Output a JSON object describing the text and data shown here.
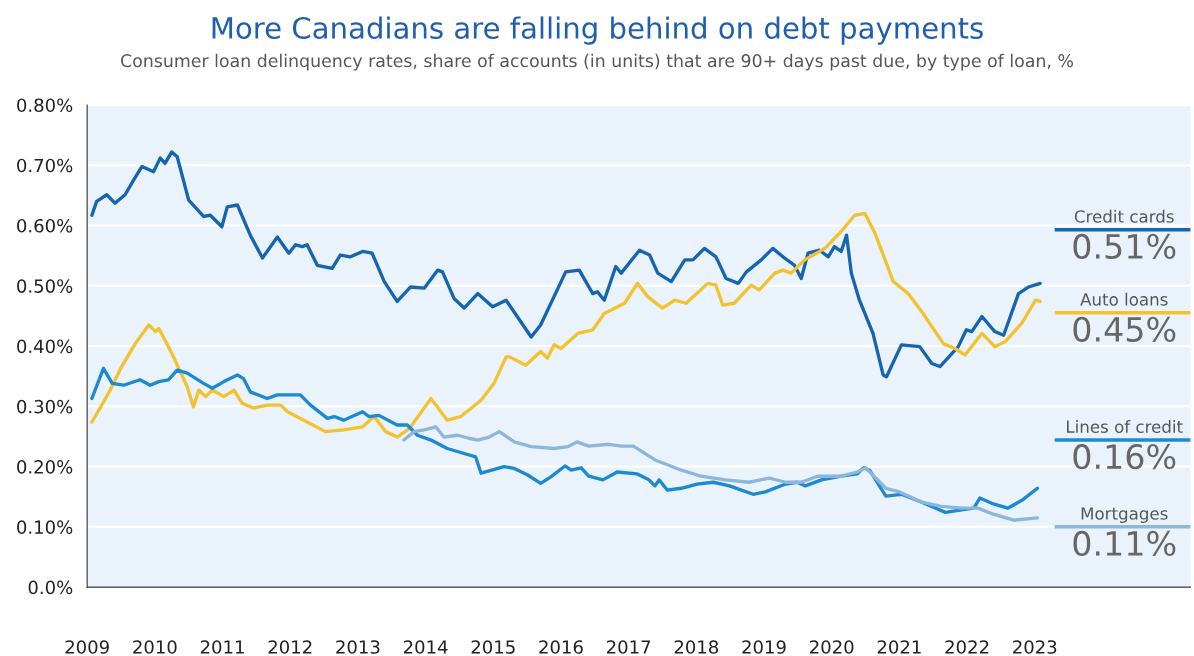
{
  "chart_data": {
    "type": "line",
    "title": "More Canadians are falling behind on debt payments",
    "subtitle": "Consumer loan delinquency rates, share of accounts (in units) that are 90+ days past due, by type of loan, %",
    "series": [
      {
        "name": "Credit cards",
        "color": "#1565b0",
        "x": [
          2009.07,
          2009.14,
          2009.29,
          2009.41,
          2009.56,
          2009.69,
          2009.81,
          2009.98,
          2010.08,
          2010.15,
          2010.25,
          2010.33,
          2010.5,
          2010.72,
          2010.82,
          2010.99,
          2011.07,
          2011.22,
          2011.41,
          2011.59,
          2011.81,
          2011.98,
          2012.08,
          2012.18,
          2012.25,
          2012.4,
          2012.62,
          2012.74,
          2012.89,
          2013.07,
          2013.21,
          2013.39,
          2013.58,
          2013.78,
          2013.98,
          2014.18,
          2014.25,
          2014.42,
          2014.57,
          2014.77,
          2014.99,
          2015.19,
          2015.56,
          2015.7,
          2016.07,
          2016.27,
          2016.47,
          2016.54,
          2016.64,
          2016.81,
          2016.89,
          2017.16,
          2017.31,
          2017.43,
          2017.63,
          2017.83,
          2017.95,
          2018.12,
          2018.29,
          2018.44,
          2018.62,
          2018.74,
          2018.96,
          2019.13,
          2019.28,
          2019.45,
          2019.55,
          2019.65,
          2019.82,
          2019.95,
          2020.04,
          2020.14,
          2020.22,
          2020.29,
          2020.41,
          2020.49,
          2020.61,
          2020.76,
          2020.81,
          2021.03,
          2021.3,
          2021.48,
          2021.6,
          2021.87,
          2021.99,
          2022.07,
          2022.22,
          2022.41,
          2022.54,
          2022.76,
          2022.91,
          2023.08
        ],
        "values": [
          0.617,
          0.64,
          0.651,
          0.637,
          0.651,
          0.676,
          0.698,
          0.689,
          0.712,
          0.703,
          0.722,
          0.714,
          0.642,
          0.615,
          0.617,
          0.598,
          0.631,
          0.634,
          0.584,
          0.546,
          0.581,
          0.554,
          0.568,
          0.565,
          0.568,
          0.534,
          0.529,
          0.551,
          0.548,
          0.557,
          0.554,
          0.507,
          0.474,
          0.498,
          0.496,
          0.526,
          0.523,
          0.479,
          0.463,
          0.487,
          0.465,
          0.476,
          0.415,
          0.435,
          0.523,
          0.526,
          0.487,
          0.49,
          0.476,
          0.532,
          0.521,
          0.559,
          0.551,
          0.521,
          0.507,
          0.543,
          0.543,
          0.562,
          0.548,
          0.512,
          0.504,
          0.523,
          0.543,
          0.562,
          0.548,
          0.534,
          0.512,
          0.554,
          0.559,
          0.548,
          0.565,
          0.557,
          0.584,
          0.521,
          0.476,
          0.454,
          0.421,
          0.352,
          0.349,
          0.402,
          0.399,
          0.371,
          0.366,
          0.399,
          0.427,
          0.424,
          0.449,
          0.424,
          0.418,
          0.487,
          0.498,
          0.504
        ]
      },
      {
        "name": "Auto loans",
        "color": "#f2c230",
        "x": [
          2009.07,
          2009.19,
          2009.34,
          2009.51,
          2009.71,
          2009.91,
          2010.01,
          2010.06,
          2010.25,
          2010.48,
          2010.57,
          2010.65,
          2010.75,
          2010.85,
          2011.02,
          2011.17,
          2011.29,
          2011.46,
          2011.66,
          2011.86,
          2011.96,
          2012.25,
          2012.52,
          2012.79,
          2013.07,
          2013.24,
          2013.41,
          2013.58,
          2013.76,
          2014.08,
          2014.32,
          2014.52,
          2014.82,
          2015.01,
          2015.19,
          2015.24,
          2015.48,
          2015.7,
          2015.8,
          2015.9,
          2016.0,
          2016.25,
          2016.47,
          2016.64,
          2016.94,
          2017.13,
          2017.28,
          2017.5,
          2017.68,
          2017.85,
          2018.17,
          2018.29,
          2018.39,
          2018.56,
          2018.81,
          2018.93,
          2019.16,
          2019.28,
          2019.4,
          2019.6,
          2019.9,
          2020.14,
          2020.34,
          2020.49,
          2020.64,
          2020.91,
          2021.13,
          2021.35,
          2021.65,
          2021.82,
          2021.97,
          2022.22,
          2022.41,
          2022.56,
          2022.81,
          2023.01,
          2023.08
        ],
        "values": [
          0.274,
          0.297,
          0.327,
          0.366,
          0.404,
          0.435,
          0.424,
          0.429,
          0.388,
          0.332,
          0.299,
          0.327,
          0.316,
          0.327,
          0.316,
          0.327,
          0.305,
          0.297,
          0.302,
          0.302,
          0.291,
          0.274,
          0.258,
          0.261,
          0.266,
          0.283,
          0.258,
          0.249,
          0.263,
          0.313,
          0.277,
          0.283,
          0.31,
          0.338,
          0.382,
          0.382,
          0.368,
          0.391,
          0.38,
          0.402,
          0.396,
          0.421,
          0.427,
          0.454,
          0.471,
          0.504,
          0.482,
          0.463,
          0.476,
          0.471,
          0.504,
          0.501,
          0.468,
          0.471,
          0.501,
          0.493,
          0.521,
          0.526,
          0.521,
          0.543,
          0.562,
          0.59,
          0.617,
          0.62,
          0.587,
          0.507,
          0.487,
          0.454,
          0.404,
          0.396,
          0.385,
          0.421,
          0.399,
          0.407,
          0.438,
          0.476,
          0.474
        ]
      },
      {
        "name": "Lines of credit",
        "color": "#1b8ad0",
        "x": [
          2009.07,
          2009.24,
          2009.37,
          2009.54,
          2009.78,
          2009.93,
          2010.06,
          2010.2,
          2010.33,
          2010.48,
          2010.72,
          2010.85,
          2011.02,
          2011.22,
          2011.31,
          2011.41,
          2011.66,
          2011.81,
          2012.15,
          2012.3,
          2012.55,
          2012.65,
          2012.79,
          2013.07,
          2013.16,
          2013.31,
          2013.58,
          2013.73,
          2013.88,
          2014.08,
          2014.32,
          2014.47,
          2014.74,
          2014.82,
          2015.16,
          2015.31,
          2015.51,
          2015.7,
          2015.85,
          2016.06,
          2016.15,
          2016.3,
          2016.41,
          2016.62,
          2016.83,
          2017.12,
          2017.3,
          2017.39,
          2017.45,
          2017.57,
          2017.78,
          2018.01,
          2018.25,
          2018.49,
          2018.84,
          2019.02,
          2019.32,
          2019.49,
          2019.61,
          2019.85,
          2020.14,
          2020.38,
          2020.47,
          2020.56,
          2020.8,
          2021.03,
          2021.33,
          2021.68,
          2021.92,
          2022.1,
          2022.19,
          2022.39,
          2022.6,
          2022.81,
          2023.04
        ],
        "values": [
          0.313,
          0.363,
          0.338,
          0.335,
          0.344,
          0.335,
          0.341,
          0.344,
          0.36,
          0.355,
          0.338,
          0.33,
          0.341,
          0.352,
          0.346,
          0.324,
          0.313,
          0.319,
          0.319,
          0.302,
          0.28,
          0.283,
          0.277,
          0.291,
          0.283,
          0.285,
          0.269,
          0.269,
          0.252,
          0.244,
          0.23,
          0.225,
          0.216,
          0.189,
          0.2,
          0.197,
          0.186,
          0.172,
          0.183,
          0.201,
          0.194,
          0.198,
          0.184,
          0.178,
          0.191,
          0.188,
          0.178,
          0.168,
          0.178,
          0.161,
          0.164,
          0.171,
          0.174,
          0.168,
          0.154,
          0.158,
          0.171,
          0.174,
          0.168,
          0.178,
          0.184,
          0.188,
          0.198,
          0.194,
          0.151,
          0.154,
          0.141,
          0.124,
          0.128,
          0.131,
          0.148,
          0.138,
          0.131,
          0.144,
          0.164
        ]
      },
      {
        "name": "Mortgages",
        "color": "#8bb7dc",
        "x": [
          2013.68,
          2013.83,
          2013.98,
          2014.15,
          2014.27,
          2014.47,
          2014.64,
          2014.77,
          2014.94,
          2015.09,
          2015.31,
          2015.56,
          2015.9,
          2016.1,
          2016.24,
          2016.41,
          2016.71,
          2016.89,
          2017.07,
          2017.39,
          2017.78,
          2018.07,
          2018.43,
          2018.78,
          2019.08,
          2019.32,
          2019.55,
          2019.79,
          2020.14,
          2020.38,
          2020.5,
          2020.8,
          2021.0,
          2021.33,
          2021.62,
          2021.92,
          2022.16,
          2022.39,
          2022.69,
          2023.04
        ],
        "values": [
          0.244,
          0.258,
          0.261,
          0.266,
          0.249,
          0.252,
          0.247,
          0.244,
          0.249,
          0.258,
          0.241,
          0.233,
          0.23,
          0.233,
          0.241,
          0.234,
          0.237,
          0.234,
          0.234,
          0.211,
          0.194,
          0.184,
          0.178,
          0.174,
          0.181,
          0.174,
          0.174,
          0.184,
          0.184,
          0.191,
          0.198,
          0.164,
          0.158,
          0.141,
          0.134,
          0.131,
          0.131,
          0.121,
          0.111,
          0.115
        ]
      }
    ],
    "annotations": [
      "0.51%",
      "0.45%",
      "0.16%",
      "0.11%"
    ],
    "xlim": [
      2009,
      2025.3
    ],
    "xticks": [
      2009,
      2010,
      2011,
      2012,
      2013,
      2014,
      2015,
      2016,
      2017,
      2018,
      2019,
      2020,
      2021,
      2022,
      2023
    ],
    "ylim": [
      0,
      0.8
    ],
    "yticks": [
      {
        "value": 0,
        "label": "0.0%"
      },
      {
        "value": 0.1,
        "label": "0.10%"
      },
      {
        "value": 0.2,
        "label": "0.20%"
      },
      {
        "value": 0.3,
        "label": "0.30%"
      },
      {
        "value": 0.4,
        "label": "0.40%"
      },
      {
        "value": 0.5,
        "label": "0.50%"
      },
      {
        "value": 0.6,
        "label": "0.60%"
      },
      {
        "value": 0.7,
        "label": "0.70%"
      },
      {
        "value": 0.8,
        "label": "0.80%"
      }
    ],
    "grid": "y",
    "legend": "right"
  }
}
